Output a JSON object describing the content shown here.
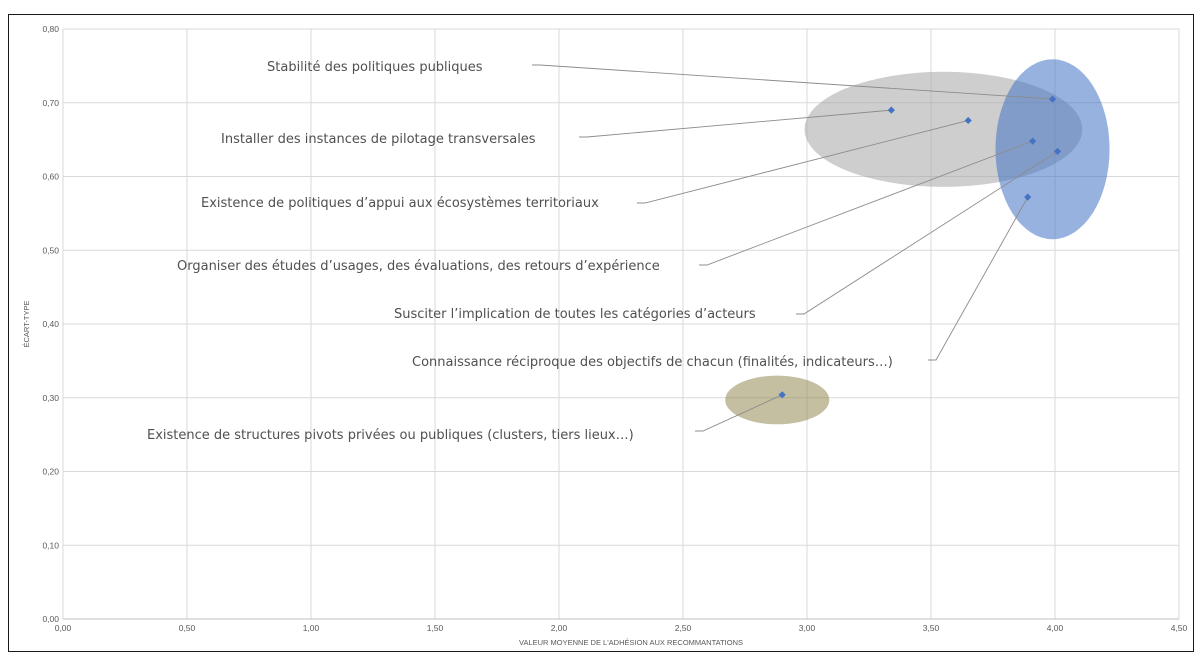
{
  "chart_data": {
    "type": "scatter",
    "xlabel": "VALEUR MOYENNE DE L'ADHÉSION AUX RECOMMANTATIONS",
    "ylabel": "ÉCART-TYPE",
    "xlim": [
      0,
      4.5
    ],
    "ylim": [
      0,
      0.8
    ],
    "x_ticks": [
      "0,00",
      "0,50",
      "1,00",
      "1,50",
      "2,00",
      "2,50",
      "3,00",
      "3,50",
      "4,00",
      "4,50"
    ],
    "y_ticks": [
      "0,00",
      "0,10",
      "0,20",
      "0,30",
      "0,40",
      "0,50",
      "0,60",
      "0,70",
      "0,80"
    ],
    "grid": true,
    "marker_color": "#4472C4",
    "points": [
      {
        "label": "Stabilité des politiques publiques",
        "x": 3.99,
        "y": 0.705
      },
      {
        "label": "Installer des instances de pilotage transversales",
        "x": 3.34,
        "y": 0.69
      },
      {
        "label": "Existence de politiques d’appui aux écosystèmes territoriaux",
        "x": 3.65,
        "y": 0.676
      },
      {
        "label": "Organiser des études d’usages, des évaluations, des retours d’expérience",
        "x": 3.91,
        "y": 0.648
      },
      {
        "label": "Susciter l’implication de toutes les catégories d’acteurs",
        "x": 4.01,
        "y": 0.634
      },
      {
        "label": "Connaissance réciproque des objectifs de chacun (finalités, indicateurs…)",
        "x": 3.89,
        "y": 0.572
      },
      {
        "label": "Existence de structures pivots privées ou publiques (clusters, tiers lieux…)",
        "x": 2.9,
        "y": 0.304
      }
    ],
    "groups": [
      {
        "color": "#A6A6A6",
        "cx": 3.55,
        "cy": 0.664,
        "rx": 0.56,
        "ry": 0.078
      },
      {
        "color": "#4472C4",
        "cx": 3.99,
        "cy": 0.637,
        "rx": 0.23,
        "ry": 0.122
      },
      {
        "color": "#948A54",
        "cx": 2.88,
        "cy": 0.297,
        "rx": 0.21,
        "ry": 0.033
      }
    ]
  }
}
